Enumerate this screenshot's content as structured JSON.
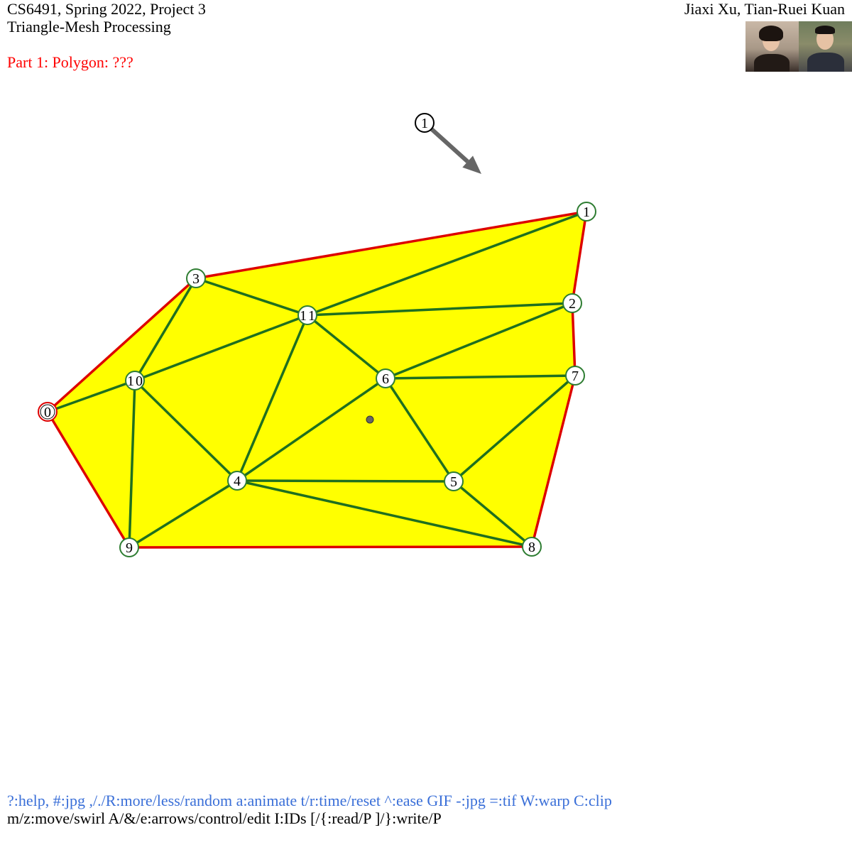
{
  "header": {
    "course": "CS6491, Spring 2022, Project 3",
    "subtitle": "Triangle-Mesh Processing",
    "part": "Part 1: Polygon: ???",
    "authors": "Jiaxi Xu, Tian-Ruei Kuan"
  },
  "colors": {
    "fill": "#ffff00",
    "boundary": "#dd0000",
    "edges": "#1f6f1f",
    "vertex_ring": "#2e7d32",
    "arrow": "#666666",
    "help_text": "#3a6fd8",
    "part_title": "#ff0000"
  },
  "arrow": {
    "label": "1"
  },
  "polygon_order": [
    0,
    9,
    8,
    7,
    2,
    1,
    3
  ],
  "vertices": [
    {
      "id": 0,
      "label": "0"
    },
    {
      "id": 1,
      "label": "1"
    },
    {
      "id": 2,
      "label": "2"
    },
    {
      "id": 3,
      "label": "3"
    },
    {
      "id": 4,
      "label": "4"
    },
    {
      "id": 5,
      "label": "5"
    },
    {
      "id": 6,
      "label": "6"
    },
    {
      "id": 7,
      "label": "7"
    },
    {
      "id": 8,
      "label": "8"
    },
    {
      "id": 9,
      "label": "9"
    },
    {
      "id": 10,
      "label": "10"
    },
    {
      "id": 11,
      "label": "11"
    }
  ],
  "edges": [
    [
      0,
      10
    ],
    [
      3,
      10
    ],
    [
      3,
      11
    ],
    [
      10,
      11
    ],
    [
      11,
      1
    ],
    [
      11,
      2
    ],
    [
      11,
      6
    ],
    [
      11,
      4
    ],
    [
      10,
      9
    ],
    [
      10,
      4
    ],
    [
      9,
      4
    ],
    [
      4,
      6
    ],
    [
      4,
      5
    ],
    [
      4,
      8
    ],
    [
      6,
      2
    ],
    [
      6,
      7
    ],
    [
      6,
      5
    ],
    [
      5,
      7
    ],
    [
      5,
      8
    ]
  ],
  "footer": {
    "help": "?:help, #:jpg ,/./R:more/less/random a:animate t/r:time/reset ^:ease GIF -:jpg =:tif W:warp C:clip",
    "controls": "m/z:move/swirl A/&/e:arrows/control/edit I:IDs [/{:read/P ]/}:write/P"
  }
}
